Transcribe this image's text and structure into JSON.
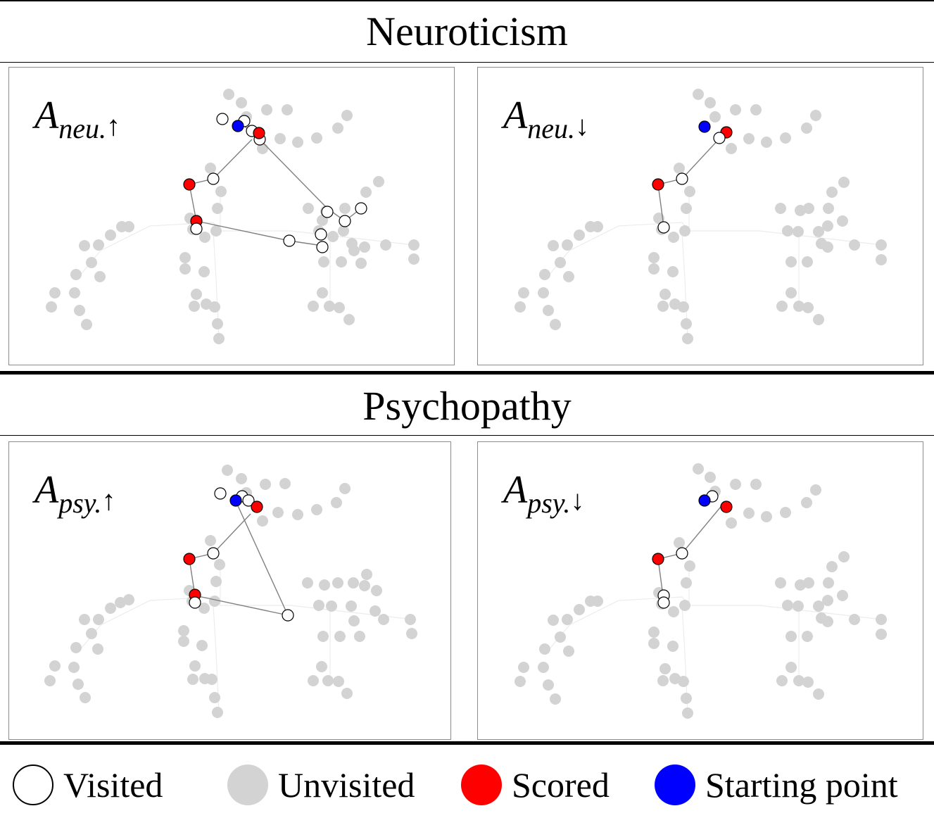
{
  "sections": [
    {
      "title": "Neuroticism",
      "panels": [
        {
          "label_main": "A",
          "label_sub": "neu.",
          "label_arrow": "↑"
        },
        {
          "label_main": "A",
          "label_sub": "neu.",
          "label_arrow": "↓"
        }
      ]
    },
    {
      "title": "Psychopathy",
      "panels": [
        {
          "label_main": "A",
          "label_sub": "psy.",
          "label_arrow": "↑"
        },
        {
          "label_main": "A",
          "label_sub": "psy.",
          "label_arrow": "↓"
        }
      ]
    }
  ],
  "legend": [
    {
      "label": "Visited"
    },
    {
      "label": "Unvisited"
    },
    {
      "label": "Scored"
    },
    {
      "label": "Starting point"
    }
  ],
  "colors": {
    "visited_fill": "#ffffff",
    "unvisited_fill": "#d3d3d3",
    "scored_fill": "#ff0000",
    "start_fill": "#0000ff",
    "node_stroke": "#000000",
    "edge": "#808080",
    "bg_edge": "#ececec",
    "panel_border": "#8c8c8c"
  }
}
